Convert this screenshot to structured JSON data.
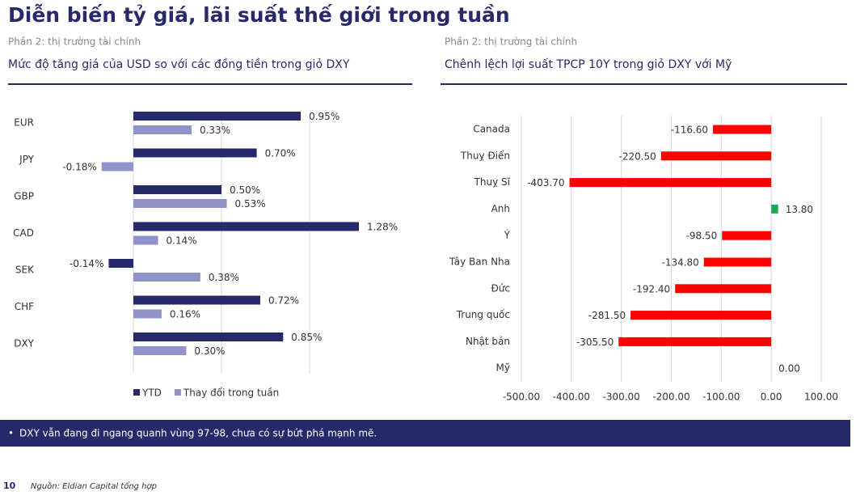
{
  "header": {
    "title": "Diễn biến tỷ giá, lãi suất thế giới trong tuần"
  },
  "chart_data": [
    {
      "type": "bar",
      "orientation": "horizontal",
      "subtitle": "Phần 2: thị trường tài chính",
      "title": "Mức độ tăng giá của USD so với các đồng tiền trong giỏ DXY",
      "categories": [
        "EUR",
        "JPY",
        "GBP",
        "CAD",
        "SEK",
        "CHF",
        "DXY"
      ],
      "series": [
        {
          "name": "YTD",
          "color": "#262a6b",
          "values": [
            0.95,
            0.7,
            0.5,
            1.28,
            -0.14,
            0.72,
            0.85
          ],
          "value_labels": [
            "0.95%",
            "0.70%",
            "0.50%",
            "1.28%",
            "-0.14%",
            "0.72%",
            "0.85%"
          ]
        },
        {
          "name": "Thay đổi trong tuần",
          "color": "#8f93c8",
          "values": [
            0.33,
            -0.18,
            0.53,
            0.14,
            0.38,
            0.16,
            0.3
          ],
          "value_labels": [
            "0.33%",
            "-0.18%",
            "0.53%",
            "0.14%",
            "0.38%",
            "0.16%",
            "0.30%"
          ]
        }
      ],
      "xlim": [
        -0.5,
        1.5
      ],
      "xticks": [
        0,
        0.5,
        1
      ],
      "show_tick_labels": false,
      "grid": true,
      "legend": "bottom-left"
    },
    {
      "type": "bar",
      "orientation": "horizontal",
      "subtitle": "Phần 2: thị trường tài chính",
      "title": "Chênh lệch lợi suất TPCP 10Y trong giỏ DXY với Mỹ",
      "categories": [
        "Canada",
        "Thuỵ Điển",
        "Thuỵ Sĩ",
        "Anh",
        "Ý",
        "Tây Ban Nha",
        "Đức",
        "Trung quốc",
        "Nhật bản",
        "Mỹ"
      ],
      "values": [
        -116.6,
        -220.5,
        -403.7,
        13.8,
        -98.5,
        -134.8,
        -192.4,
        -281.5,
        -305.5,
        0
      ],
      "value_labels": [
        "-116.60",
        "-220.50",
        "-403.70",
        "13.80",
        "-98.50",
        "-134.80",
        "-192.40",
        "-281.50",
        "-305.50",
        "0.00"
      ],
      "color": "#ff0000",
      "positive_color": "#1aaa55",
      "xlim": [
        -500,
        100
      ],
      "xticks": [
        {
          "value": -500,
          "label": "-500.00"
        },
        {
          "value": -400,
          "label": "-400.00"
        },
        {
          "value": -300,
          "label": "-300.00"
        },
        {
          "value": -200,
          "label": "-200.00"
        },
        {
          "value": -100,
          "label": "-100.00"
        },
        {
          "value": 0,
          "label": "0.00"
        },
        {
          "value": 100,
          "label": "100.00"
        }
      ],
      "show_tick_labels": true,
      "grid": true
    }
  ],
  "note": "DXY vẫn đang đi ngang quanh vùng 97-98, chưa có sự bứt phá mạnh mẽ.",
  "footer": {
    "page": "10",
    "source": "Nguồn: Eldian Capital tổng hợp"
  }
}
